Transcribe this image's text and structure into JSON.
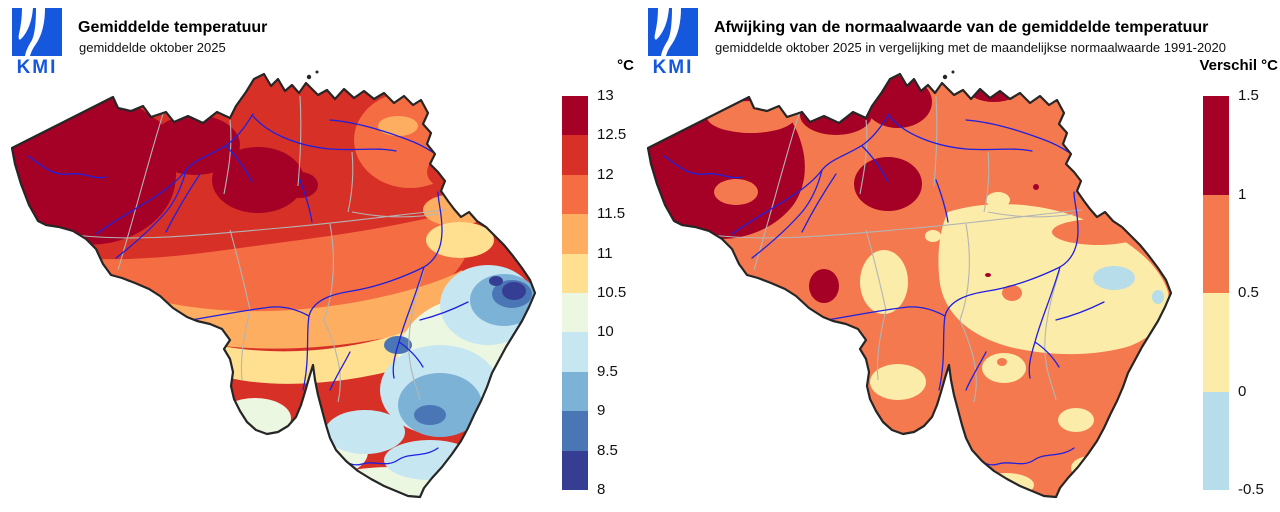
{
  "brand": {
    "logo_text": "KMI",
    "logo_color": "#1557dd"
  },
  "map_style": {
    "outline_color": "#262626",
    "river_color": "#2020e0",
    "province_border_color": "#b4b4b4"
  },
  "panels": [
    {
      "title": "Gemiddelde temperatuur",
      "subtitle": "gemiddelde oktober 2025",
      "legend": {
        "unit_label": "°C",
        "tick_labels": [
          "13",
          "12.5",
          "12",
          "11.5",
          "11",
          "10.5",
          "10",
          "9.5",
          "9",
          "8.5",
          "8"
        ],
        "segment_colors_top_to_bottom": [
          "#a50026",
          "#d73027",
          "#f46d43",
          "#fdae61",
          "#fee090",
          "#ecf7e2",
          "#c6e6f1",
          "#7cb2d6",
          "#4a76b6",
          "#363e94"
        ]
      }
    },
    {
      "title": "Afwijking van de normaalwaarde van de gemiddelde temperatuur",
      "subtitle": "gemiddelde oktober 2025 in vergelijking met de maandelijkse normaalwaarde 1991-2020",
      "legend": {
        "unit_label": "Verschil °C",
        "tick_labels": [
          "1.5",
          "1",
          "0.5",
          "0",
          "-0.5"
        ],
        "segment_colors_top_to_bottom": [
          "#a50026",
          "#f4794e",
          "#fcecaa",
          "#b7dcea"
        ]
      }
    }
  ]
}
